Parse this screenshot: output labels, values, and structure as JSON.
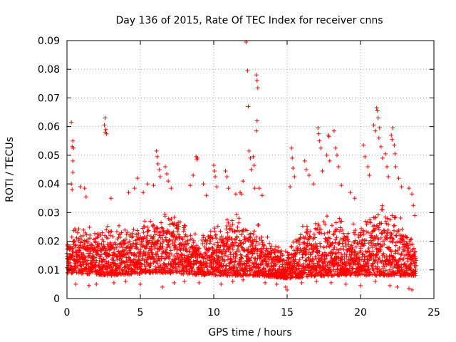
{
  "chart_data": {
    "type": "scatter",
    "title": "Day 136 of 2015, Rate Of TEC Index for receiver cnns",
    "xlabel": "GPS time / hours",
    "ylabel": "ROTI / TECUs",
    "xlim": [
      0,
      25
    ],
    "ylim": [
      0,
      0.09
    ],
    "x_ticks": [
      "0",
      "5",
      "10",
      "15",
      "20",
      "25"
    ],
    "y_ticks": [
      "0",
      "0.01",
      "0.02",
      "0.03",
      "0.04",
      "0.05",
      "0.06",
      "0.07",
      "0.08",
      "0.09"
    ],
    "x_tick_values": [
      0,
      5,
      10,
      15,
      20,
      25
    ],
    "y_tick_values": [
      0,
      0.01,
      0.02,
      0.03,
      0.04,
      0.05,
      0.06,
      0.07,
      0.08,
      0.09
    ],
    "grid": true,
    "marker": "+",
    "series": [
      {
        "name": "ROTI",
        "color": "#ff0000",
        "points": [
          [
            0.3,
            0.0615
          ],
          [
            0.4,
            0.055
          ],
          [
            0.35,
            0.053
          ],
          [
            0.45,
            0.0525
          ],
          [
            0.4,
            0.048
          ],
          [
            0.4,
            0.044
          ],
          [
            0.3,
            0.04
          ],
          [
            0.35,
            0.038
          ],
          [
            0.9,
            0.039
          ],
          [
            1.2,
            0.0385
          ],
          [
            1.3,
            0.0355
          ],
          [
            2.6,
            0.063
          ],
          [
            2.55,
            0.0605
          ],
          [
            2.65,
            0.059
          ],
          [
            2.7,
            0.0575
          ],
          [
            2.6,
            0.058
          ],
          [
            3.0,
            0.035
          ],
          [
            4.2,
            0.037
          ],
          [
            4.6,
            0.0385
          ],
          [
            4.8,
            0.042
          ],
          [
            5.2,
            0.037
          ],
          [
            5.5,
            0.04
          ],
          [
            5.9,
            0.0395
          ],
          [
            6.1,
            0.0515
          ],
          [
            6.15,
            0.0495
          ],
          [
            6.2,
            0.047
          ],
          [
            6.3,
            0.045
          ],
          [
            6.35,
            0.0425
          ],
          [
            6.7,
            0.046
          ],
          [
            6.8,
            0.0435
          ],
          [
            6.9,
            0.041
          ],
          [
            7.1,
            0.0385
          ],
          [
            8.4,
            0.0395
          ],
          [
            8.6,
            0.043
          ],
          [
            8.8,
            0.0495
          ],
          [
            8.85,
            0.0485
          ],
          [
            8.9,
            0.049
          ],
          [
            9.3,
            0.04
          ],
          [
            9.5,
            0.036
          ],
          [
            10.0,
            0.0465
          ],
          [
            10.05,
            0.0445
          ],
          [
            10.1,
            0.0425
          ],
          [
            10.2,
            0.039
          ],
          [
            10.8,
            0.0445
          ],
          [
            10.9,
            0.0425
          ],
          [
            11.0,
            0.0385
          ],
          [
            11.5,
            0.0365
          ],
          [
            11.8,
            0.037
          ],
          [
            11.9,
            0.0365
          ],
          [
            12.0,
            0.041
          ],
          [
            12.2,
            0.0895
          ],
          [
            12.3,
            0.0795
          ],
          [
            12.35,
            0.067
          ],
          [
            12.4,
            0.0515
          ],
          [
            12.5,
            0.049
          ],
          [
            12.55,
            0.045
          ],
          [
            12.7,
            0.0495
          ],
          [
            12.75,
            0.0465
          ],
          [
            12.8,
            0.0385
          ],
          [
            12.9,
            0.078
          ],
          [
            12.95,
            0.076
          ],
          [
            13.0,
            0.0735
          ],
          [
            12.95,
            0.062
          ],
          [
            12.9,
            0.0585
          ],
          [
            13.1,
            0.0385
          ],
          [
            13.3,
            0.036
          ],
          [
            15.3,
            0.0525
          ],
          [
            15.35,
            0.049
          ],
          [
            15.4,
            0.0455
          ],
          [
            15.5,
            0.0425
          ],
          [
            15.2,
            0.039
          ],
          [
            16.2,
            0.048
          ],
          [
            16.3,
            0.045
          ],
          [
            16.5,
            0.043
          ],
          [
            16.8,
            0.04
          ],
          [
            17.1,
            0.0595
          ],
          [
            17.15,
            0.0575
          ],
          [
            17.2,
            0.055
          ],
          [
            17.3,
            0.0525
          ],
          [
            17.4,
            0.0445
          ],
          [
            17.8,
            0.057
          ],
          [
            17.85,
            0.0565
          ],
          [
            17.7,
            0.05
          ],
          [
            17.9,
            0.048
          ],
          [
            18.2,
            0.0585
          ],
          [
            18.3,
            0.0525
          ],
          [
            18.4,
            0.05
          ],
          [
            18.5,
            0.046
          ],
          [
            18.7,
            0.0395
          ],
          [
            19.3,
            0.037
          ],
          [
            19.6,
            0.035
          ],
          [
            20.2,
            0.0535
          ],
          [
            20.3,
            0.0495
          ],
          [
            20.5,
            0.046
          ],
          [
            20.6,
            0.043
          ],
          [
            20.9,
            0.0605
          ],
          [
            21.0,
            0.0585
          ],
          [
            21.1,
            0.0665
          ],
          [
            21.15,
            0.0655
          ],
          [
            21.2,
            0.063
          ],
          [
            21.3,
            0.0595
          ],
          [
            21.25,
            0.056
          ],
          [
            21.4,
            0.053
          ],
          [
            21.5,
            0.049
          ],
          [
            21.7,
            0.0505
          ],
          [
            21.8,
            0.046
          ],
          [
            21.9,
            0.0425
          ],
          [
            22.1,
            0.057
          ],
          [
            22.15,
            0.0555
          ],
          [
            22.2,
            0.0595
          ],
          [
            22.3,
            0.0535
          ],
          [
            22.35,
            0.0505
          ],
          [
            22.4,
            0.046
          ],
          [
            22.6,
            0.042
          ],
          [
            22.8,
            0.039
          ],
          [
            23.3,
            0.0385
          ],
          [
            23.5,
            0.0365
          ],
          [
            23.6,
            0.0325
          ],
          [
            23.7,
            0.029
          ],
          [
            0.6,
            0.005
          ],
          [
            1.5,
            0.0045
          ],
          [
            2.0,
            0.005
          ],
          [
            3.2,
            0.0055
          ],
          [
            4.0,
            0.006
          ],
          [
            5.0,
            0.005
          ],
          [
            6.5,
            0.004
          ],
          [
            7.3,
            0.0055
          ],
          [
            8.0,
            0.006
          ],
          [
            9.0,
            0.0055
          ],
          [
            10.5,
            0.005
          ],
          [
            11.3,
            0.006
          ],
          [
            12.0,
            0.0065
          ],
          [
            13.5,
            0.0055
          ],
          [
            14.3,
            0.005
          ],
          [
            14.9,
            0.004
          ],
          [
            15.0,
            0.003
          ],
          [
            16.0,
            0.0055
          ],
          [
            17.0,
            0.006
          ],
          [
            18.0,
            0.0055
          ],
          [
            19.0,
            0.005
          ],
          [
            20.0,
            0.0045
          ],
          [
            21.0,
            0.006
          ],
          [
            22.0,
            0.0045
          ],
          [
            22.5,
            0.004
          ],
          [
            23.3,
            0.0035
          ],
          [
            23.5,
            0.003
          ]
        ]
      }
    ],
    "dense_band": {
      "description": "dense cloud of ROTI samples every ~30 s across the day",
      "low_envelope": [
        [
          0,
          0.009
        ],
        [
          3,
          0.008
        ],
        [
          6,
          0.009
        ],
        [
          10,
          0.008
        ],
        [
          13,
          0.008
        ],
        [
          15,
          0.007
        ],
        [
          18,
          0.008
        ],
        [
          21,
          0.008
        ],
        [
          24,
          0.008
        ]
      ],
      "high_envelope": [
        [
          0,
          0.022
        ],
        [
          1,
          0.028
        ],
        [
          2,
          0.024
        ],
        [
          3,
          0.027
        ],
        [
          4,
          0.026
        ],
        [
          5,
          0.028
        ],
        [
          6,
          0.03
        ],
        [
          7,
          0.033
        ],
        [
          8,
          0.027
        ],
        [
          9,
          0.024
        ],
        [
          10,
          0.026
        ],
        [
          11,
          0.031
        ],
        [
          12,
          0.029
        ],
        [
          13,
          0.027
        ],
        [
          14,
          0.02
        ],
        [
          15,
          0.018
        ],
        [
          16,
          0.027
        ],
        [
          17,
          0.029
        ],
        [
          18,
          0.031
        ],
        [
          19,
          0.028
        ],
        [
          20,
          0.026
        ],
        [
          21,
          0.034
        ],
        [
          22,
          0.033
        ],
        [
          23,
          0.028
        ],
        [
          23.8,
          0.02
        ]
      ]
    }
  }
}
